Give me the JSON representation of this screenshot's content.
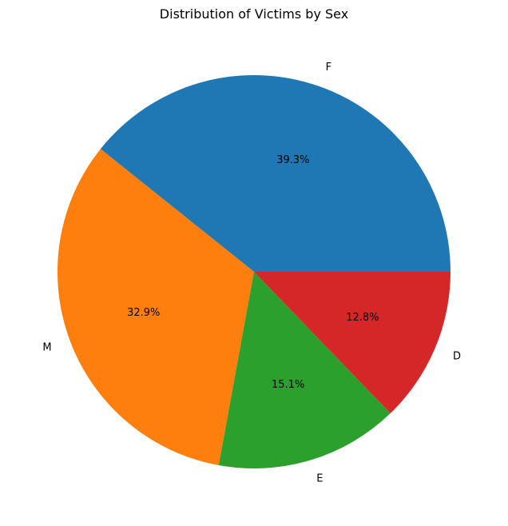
{
  "chart_data": {
    "type": "pie",
    "title": "Distribution of Victims by Sex",
    "categories": [
      "F",
      "M",
      "E",
      "D"
    ],
    "values": [
      39.3,
      32.9,
      15.1,
      12.8
    ],
    "value_labels": [
      "39.3%",
      "32.9%",
      "15.1%",
      "12.8%"
    ],
    "colors": [
      "#1f77b4",
      "#ff7f0e",
      "#2ca02c",
      "#d62728"
    ],
    "start_angle_deg": 0,
    "direction": "counterclockwise"
  }
}
